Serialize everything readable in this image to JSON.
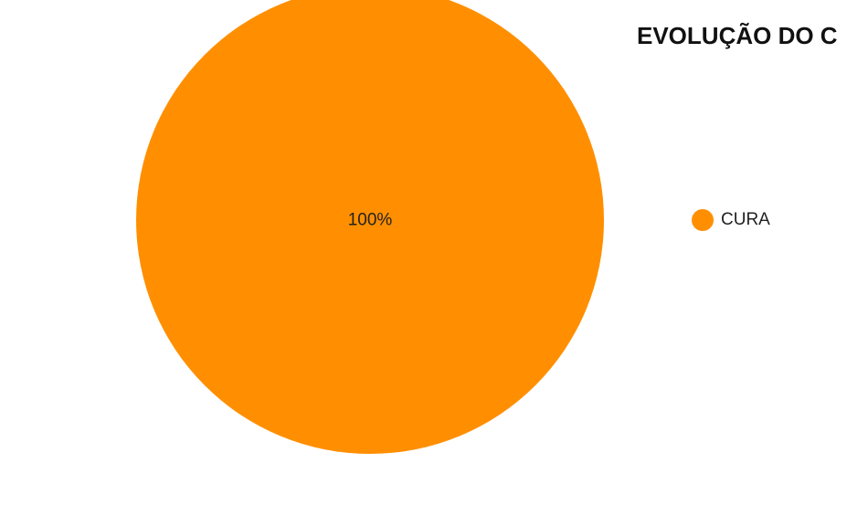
{
  "chart_data": {
    "type": "pie",
    "title": "EVOLUÇÃO DO C",
    "slices": [
      {
        "label": "CURA",
        "value": 100,
        "display_label": "100%",
        "color": "#FF8F00"
      }
    ],
    "legend": {
      "position": "right",
      "entries": [
        "CURA"
      ]
    }
  }
}
